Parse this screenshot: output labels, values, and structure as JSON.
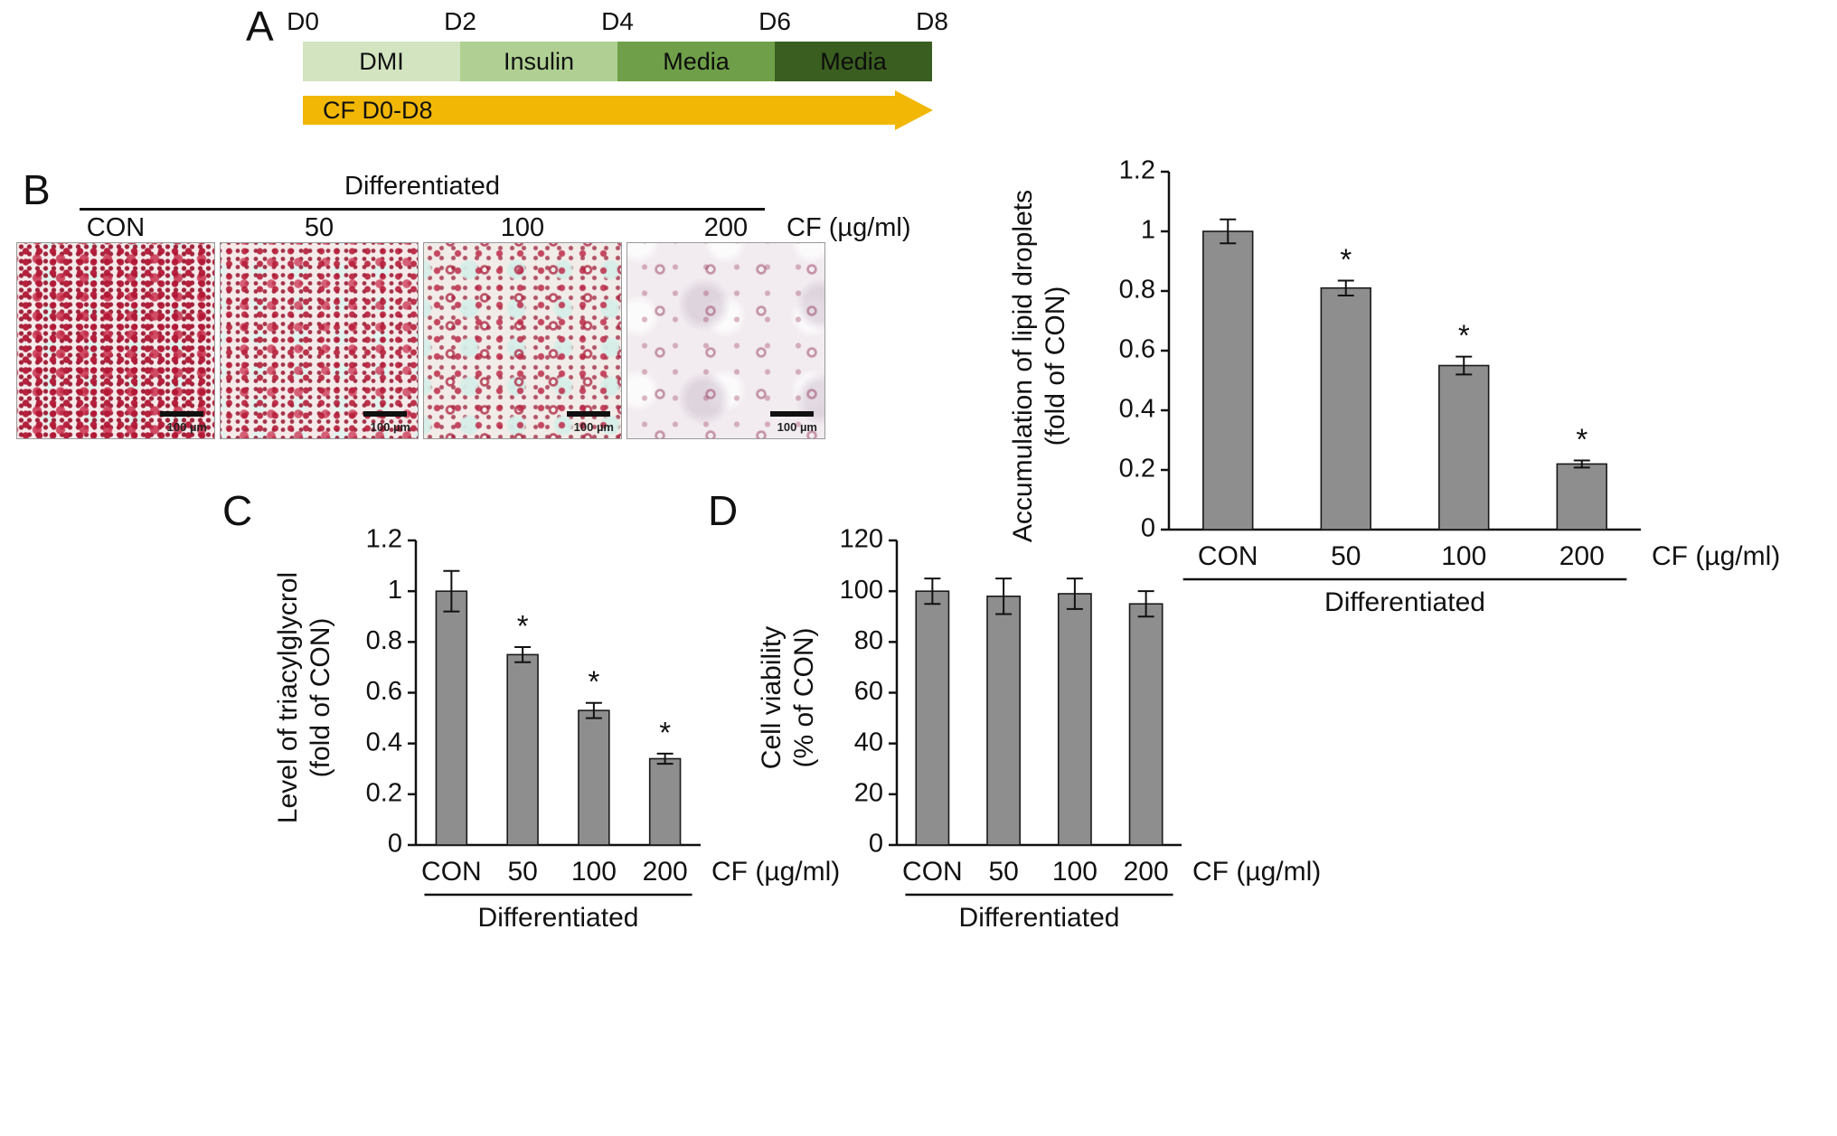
{
  "panelA": {
    "letter": "A",
    "day_labels": [
      "D0",
      "D2",
      "D4",
      "D6",
      "D8"
    ],
    "segments": [
      {
        "label": "DMI",
        "color": "#d2e4c0"
      },
      {
        "label": "Insulin",
        "color": "#afd092"
      },
      {
        "label": "Media",
        "color": "#6fa049"
      },
      {
        "label": "Media",
        "color": "#3a5e20"
      }
    ],
    "arrow_label": "CF D0-D8",
    "arrow_color": "#f2b705"
  },
  "panelB": {
    "letter": "B",
    "group_header": "Differentiated",
    "column_labels": [
      "CON",
      "50",
      "100",
      "200"
    ],
    "unit_label": "CF (µg/ml)",
    "scale_bar": "100 µm"
  },
  "panelC": {
    "letter": "C"
  },
  "panelD": {
    "letter": "D"
  },
  "chart_data": [
    {
      "id": "lipid-droplets",
      "type": "bar",
      "ylabel_lines": [
        "Accumulation of lipid droplets",
        "(fold of CON)"
      ],
      "categories": [
        "CON",
        "50",
        "100",
        "200"
      ],
      "values": [
        1.0,
        0.81,
        0.55,
        0.22
      ],
      "errors": [
        0.04,
        0.025,
        0.03,
        0.012
      ],
      "annotations": [
        "",
        "*",
        "*",
        "*"
      ],
      "ylim": [
        0,
        1.2
      ],
      "yticks": [
        "0",
        "0.2",
        "0.4",
        "0.6",
        "0.8",
        "1",
        "1.2"
      ],
      "x_axis_suffix": "CF (µg/ml)",
      "group_label": "Differentiated",
      "bar_color": "#8e8e8e"
    },
    {
      "id": "triacylglycerol",
      "type": "bar",
      "ylabel_lines": [
        "Level of triacylglycrol",
        "(fold of CON)"
      ],
      "categories": [
        "CON",
        "50",
        "100",
        "200"
      ],
      "values": [
        1.0,
        0.75,
        0.53,
        0.34
      ],
      "errors": [
        0.08,
        0.03,
        0.03,
        0.02
      ],
      "annotations": [
        "",
        "*",
        "*",
        "*"
      ],
      "ylim": [
        0,
        1.2
      ],
      "yticks": [
        "0",
        "0.2",
        "0.4",
        "0.6",
        "0.8",
        "1",
        "1.2"
      ],
      "x_axis_suffix": "CF (µg/ml)",
      "group_label": "Differentiated",
      "bar_color": "#8e8e8e"
    },
    {
      "id": "cell-viability",
      "type": "bar",
      "ylabel_lines": [
        "Cell viability",
        "(% of CON)"
      ],
      "categories": [
        "CON",
        "50",
        "100",
        "200"
      ],
      "values": [
        100,
        98,
        99,
        95
      ],
      "errors": [
        5,
        7,
        6,
        5
      ],
      "annotations": [
        "",
        "",
        "",
        ""
      ],
      "ylim": [
        0,
        120
      ],
      "yticks": [
        "0",
        "20",
        "40",
        "60",
        "80",
        "100",
        "120"
      ],
      "x_axis_suffix": "CF (µg/ml)",
      "group_label": "Differentiated",
      "bar_color": "#8e8e8e"
    }
  ]
}
